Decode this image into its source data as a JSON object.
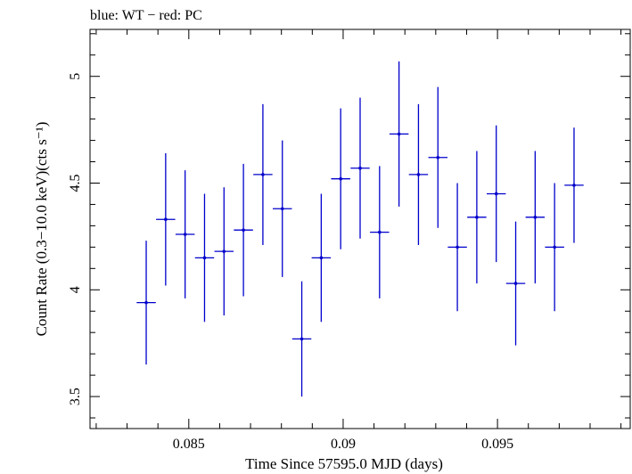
{
  "chart_data": {
    "type": "scatter",
    "title": "blue: WT − red: PC",
    "xlabel": "Time Since 57595.0 MJD (days)",
    "ylabel": "Count Rate (0.3−10.0 keV)(cts s⁻¹)",
    "xlim": [
      0.0818,
      0.0993
    ],
    "ylim": [
      3.35,
      5.22
    ],
    "xticks": [
      0.085,
      0.09,
      0.095
    ],
    "xtick_labels": [
      "0.085",
      "0.09",
      "0.095"
    ],
    "yticks": [
      3.5,
      4,
      4.5,
      5
    ],
    "ytick_labels": [
      "3.5",
      "4",
      "4.5",
      "5"
    ],
    "grid": false,
    "series": [
      {
        "name": "WT",
        "color": "#0000cc",
        "points": [
          {
            "x": 0.08362,
            "xerr": 0.00031,
            "y": 3.94,
            "yerr": 0.29
          },
          {
            "x": 0.08425,
            "xerr": 0.00031,
            "y": 4.33,
            "yerr": 0.31
          },
          {
            "x": 0.08488,
            "xerr": 0.00031,
            "y": 4.26,
            "yerr": 0.3
          },
          {
            "x": 0.08551,
            "xerr": 0.00031,
            "y": 4.15,
            "yerr": 0.3
          },
          {
            "x": 0.08614,
            "xerr": 0.00031,
            "y": 4.18,
            "yerr": 0.3
          },
          {
            "x": 0.08677,
            "xerr": 0.00031,
            "y": 4.28,
            "yerr": 0.31
          },
          {
            "x": 0.0874,
            "xerr": 0.00031,
            "y": 4.54,
            "yerr": 0.33
          },
          {
            "x": 0.08803,
            "xerr": 0.00031,
            "y": 4.38,
            "yerr": 0.32
          },
          {
            "x": 0.08866,
            "xerr": 0.00031,
            "y": 3.77,
            "yerr": 0.27
          },
          {
            "x": 0.08929,
            "xerr": 0.00031,
            "y": 4.15,
            "yerr": 0.3
          },
          {
            "x": 0.08992,
            "xerr": 0.00031,
            "y": 4.52,
            "yerr": 0.33
          },
          {
            "x": 0.09055,
            "xerr": 0.00031,
            "y": 4.57,
            "yerr": 0.33
          },
          {
            "x": 0.09118,
            "xerr": 0.00031,
            "y": 4.27,
            "yerr": 0.31
          },
          {
            "x": 0.09181,
            "xerr": 0.00031,
            "y": 4.73,
            "yerr": 0.34
          },
          {
            "x": 0.09244,
            "xerr": 0.00031,
            "y": 4.54,
            "yerr": 0.33
          },
          {
            "x": 0.09307,
            "xerr": 0.00031,
            "y": 4.62,
            "yerr": 0.33
          },
          {
            "x": 0.0937,
            "xerr": 0.00031,
            "y": 4.2,
            "yerr": 0.3
          },
          {
            "x": 0.09433,
            "xerr": 0.00031,
            "y": 4.34,
            "yerr": 0.31
          },
          {
            "x": 0.09496,
            "xerr": 0.00031,
            "y": 4.45,
            "yerr": 0.32
          },
          {
            "x": 0.09559,
            "xerr": 0.00031,
            "y": 4.03,
            "yerr": 0.29
          },
          {
            "x": 0.09622,
            "xerr": 0.00031,
            "y": 4.34,
            "yerr": 0.31
          },
          {
            "x": 0.09685,
            "xerr": 0.00031,
            "y": 4.2,
            "yerr": 0.3
          },
          {
            "x": 0.09748,
            "xerr": 0.00031,
            "y": 4.49,
            "yerr": 0.27
          }
        ]
      }
    ]
  }
}
